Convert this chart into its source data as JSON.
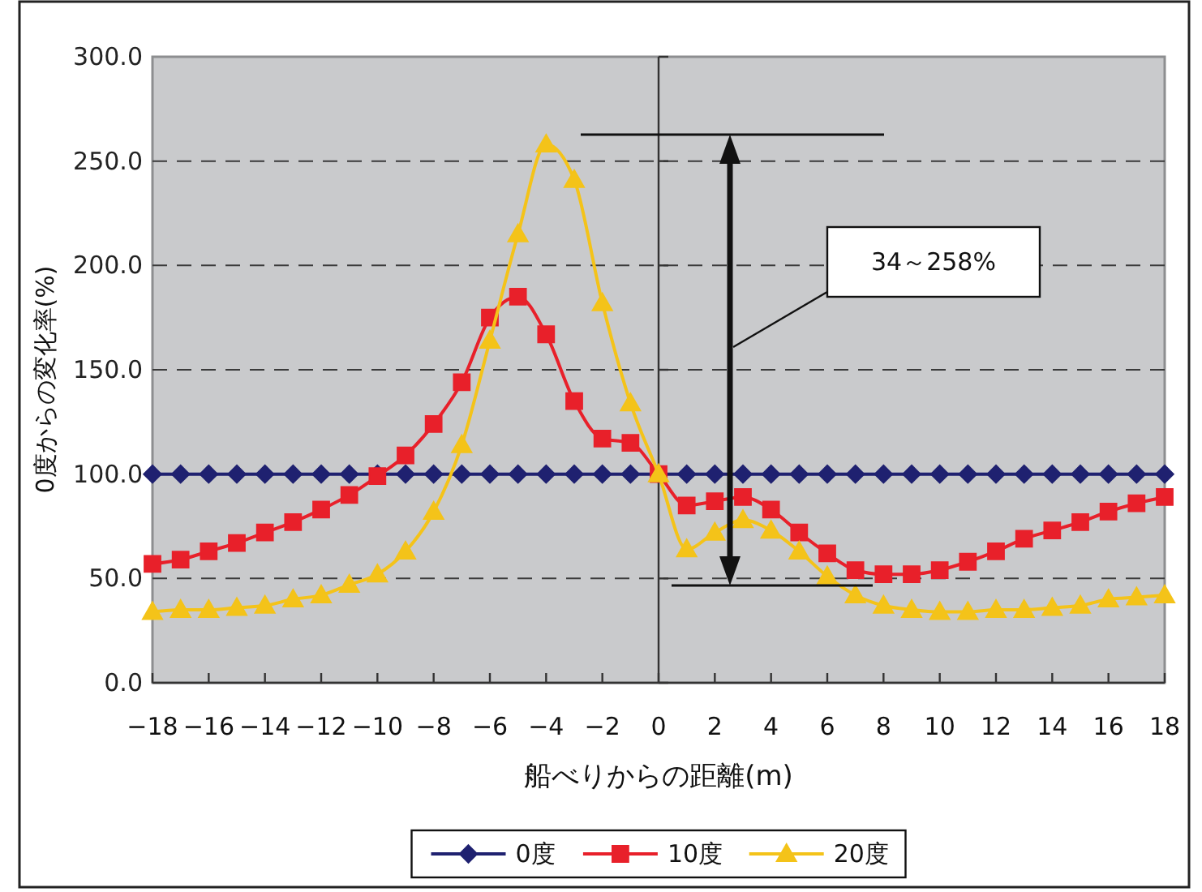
{
  "chart_data": {
    "type": "line",
    "xlabel": "船べりからの距離(m)",
    "ylabel": "0度からの変化率(%)",
    "x": [
      -18,
      -17,
      -16,
      -15,
      -14,
      -13,
      -12,
      -11,
      -10,
      -9,
      -8,
      -7,
      -6,
      -5,
      -4,
      -3,
      -2,
      -1,
      0,
      1,
      2,
      3,
      4,
      5,
      6,
      7,
      8,
      9,
      10,
      11,
      12,
      13,
      14,
      15,
      16,
      17,
      18
    ],
    "xlim": [
      -18,
      18
    ],
    "xticks": [
      -18,
      -16,
      -14,
      -12,
      -10,
      -8,
      -6,
      -4,
      -2,
      0,
      2,
      4,
      6,
      8,
      10,
      12,
      14,
      16,
      18
    ],
    "ylim": [
      0,
      300
    ],
    "yticks": [
      {
        "value": 0,
        "label": "0.0"
      },
      {
        "value": 50,
        "label": "50.0"
      },
      {
        "value": 100,
        "label": "100.0"
      },
      {
        "value": 150,
        "label": "150.0"
      },
      {
        "value": 200,
        "label": "200.0"
      },
      {
        "value": 250,
        "label": "250.0"
      },
      {
        "value": 300,
        "label": "300.0"
      }
    ],
    "grid": "y",
    "legend": "bottom",
    "line_style": "solid",
    "annotations": [
      "34～258%"
    ],
    "series": [
      {
        "name": "0度",
        "color": "#1f2170",
        "marker": "diamond",
        "values": [
          100,
          100,
          100,
          100,
          100,
          100,
          100,
          100,
          100,
          100,
          100,
          100,
          100,
          100,
          100,
          100,
          100,
          100,
          100,
          100,
          100,
          100,
          100,
          100,
          100,
          100,
          100,
          100,
          100,
          100,
          100,
          100,
          100,
          100,
          100,
          100,
          100
        ]
      },
      {
        "name": "10度",
        "color": "#e8202a",
        "marker": "square",
        "values": [
          57,
          59,
          63,
          67,
          72,
          77,
          83,
          90,
          99,
          109,
          124,
          144,
          175,
          185,
          167,
          135,
          117,
          115,
          100,
          85,
          87,
          89,
          83,
          72,
          62,
          54,
          52,
          52,
          54,
          58,
          63,
          69,
          73,
          77,
          82,
          86,
          89
        ]
      },
      {
        "name": "20度",
        "color": "#f4c319",
        "marker": "triangle",
        "values": [
          34,
          35,
          35,
          36,
          37,
          40,
          42,
          47,
          52,
          63,
          82,
          114,
          164,
          215,
          258,
          241,
          182,
          134,
          100,
          64,
          72,
          78,
          73,
          63,
          51,
          42,
          37,
          35,
          34,
          34,
          35,
          35,
          36,
          37,
          40,
          41,
          42
        ]
      }
    ]
  }
}
